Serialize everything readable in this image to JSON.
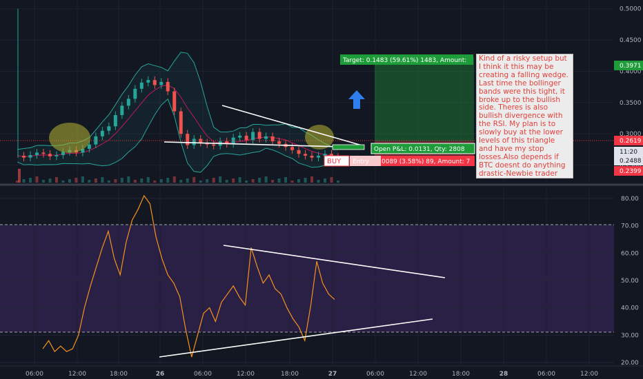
{
  "chart_data": [
    {
      "type": "candlestick",
      "panel": "price",
      "price_axis_ticks": [
        "0.5000",
        "0.4500",
        "0.4000",
        "0.3500",
        "0.3000",
        "0.2500"
      ],
      "ylim": [
        0.222,
        0.514
      ],
      "price_tags": {
        "target_level": "0.3971",
        "current": "0.2619",
        "time_left": "11:20",
        "bid": "0.2488",
        "stop_level": "0.2399"
      },
      "position": {
        "target_text": "Target: 0.1483 (59.61%) 1483, Amount:",
        "pnl_text": "Open P&L: 0.0131, Qty: 2808",
        "stop_text": "0089 (3.58%) 89, Amount: 7",
        "side_label": "BUY",
        "entry_label": "Entry"
      },
      "price_series_approx": [
        0.265,
        0.262,
        0.266,
        0.27,
        0.268,
        0.264,
        0.266,
        0.271,
        0.274,
        0.27,
        0.276,
        0.283,
        0.296,
        0.305,
        0.312,
        0.33,
        0.345,
        0.356,
        0.372,
        0.382,
        0.386,
        0.378,
        0.383,
        0.368,
        0.336,
        0.3,
        0.282,
        0.292,
        0.286,
        0.283,
        0.281,
        0.288,
        0.284,
        0.294,
        0.297,
        0.29,
        0.303,
        0.292,
        0.296,
        0.288,
        0.284,
        0.279,
        0.274,
        0.268,
        0.265,
        0.262,
        0.265,
        0.268,
        0.263,
        0.261
      ],
      "triangle_lines": [
        {
          "from": [
            30,
            0.305
          ],
          "to": [
            52,
            0.264
          ]
        },
        {
          "from": [
            22,
            0.262
          ],
          "to": [
            52,
            0.253
          ]
        }
      ]
    },
    {
      "type": "line",
      "panel": "rsi",
      "axis_ticks": [
        "80.00",
        "70.00",
        "60.00",
        "50.00",
        "40.00",
        "30.00",
        "20.00"
      ],
      "ylim": [
        19,
        84
      ],
      "bands": [
        70,
        30
      ],
      "rsi_series_approx": [
        25,
        28,
        24,
        26,
        24,
        25,
        30,
        40,
        48,
        55,
        62,
        68,
        58,
        52,
        64,
        72,
        76,
        81,
        78,
        66,
        58,
        52,
        49,
        44,
        32,
        22,
        30,
        38,
        40,
        35,
        42,
        45,
        48,
        44,
        41,
        62,
        55,
        49,
        52,
        47,
        45,
        40,
        36,
        33,
        28,
        41,
        57,
        49,
        45,
        43
      ],
      "trend_lines": [
        {
          "from": [
            33,
            62
          ],
          "to": [
            62,
            50
          ]
        },
        {
          "from": [
            24,
            21
          ],
          "to": [
            62,
            35
          ]
        }
      ]
    }
  ],
  "time_axis": {
    "labels": [
      "06:00",
      "12:00",
      "18:00",
      "26",
      "06:00",
      "12:00",
      "18:00",
      "27",
      "06:00",
      "12:00",
      "18:00",
      "28",
      "06:00",
      "12:00"
    ]
  },
  "annotation": {
    "text": "Kind of a risky setup but I think it this may be creating a falling wedge. Last time the bollinger bands were this tight, it broke up to the bullish side. Theres is also bullish divergence with the RSI. My plan is to slowly buy at the lower levels of this triangle and have my stop losses.Also depends if BTC doesnt do anything drastic-Newbie trader"
  },
  "colors": {
    "background": "#131722",
    "rsi_band": "#2a1f45",
    "up_candle": "#26a69a",
    "down_candle": "#ef5350",
    "rsi_line": "#f7921e",
    "target_green": "#1f9c3a",
    "stop_red": "#f23645",
    "bollinger": "#26a69a",
    "trend_line": "#ffffff",
    "highlight_ellipse": "#b7b532"
  }
}
